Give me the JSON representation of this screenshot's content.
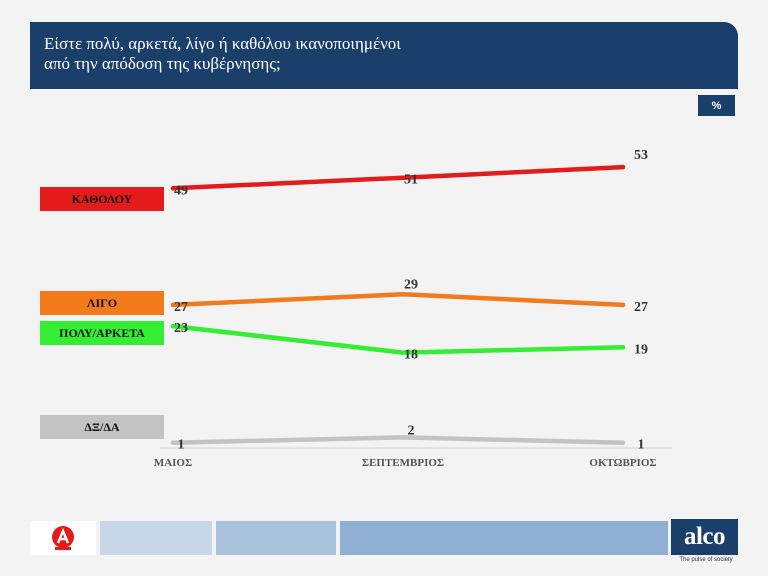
{
  "title": {
    "line1": "Είστε πολύ, αρκετά, λίγο ή καθόλου ικανοποιημένοι",
    "line2": "από την απόδοση της κυβέρνησης;"
  },
  "unit_badge": "%",
  "brand": {
    "name": "alco",
    "tagline": "The pulse of society"
  },
  "colors": {
    "header": "#1a3f6b",
    "katholou": "#e31b1b",
    "ligo": "#f07a1c",
    "poly_arketa": "#33ee33",
    "dk_na": "#c3c3c3"
  },
  "chart_data": {
    "type": "line",
    "categories": [
      "ΜΑΙΟΣ",
      "ΣΕΠΤΕΜΒΡΙΟΣ",
      "ΟΚΤΩΒΡΙΟΣ"
    ],
    "series": [
      {
        "name": "ΚΑΘΟΛΟΥ",
        "values": [
          49,
          51,
          53
        ],
        "color": "#e31b1b"
      },
      {
        "name": "ΛΙΓΟ",
        "values": [
          27,
          29,
          27
        ],
        "color": "#f07a1c"
      },
      {
        "name": "ΠΟΛΥ/ΑΡΚΕΤΑ",
        "values": [
          23,
          18,
          19
        ],
        "color": "#33ee33"
      },
      {
        "name": "ΔΞ/ΔΑ",
        "values": [
          1,
          2,
          1
        ],
        "color": "#c3c3c3"
      }
    ],
    "ylim": [
      0,
      60
    ],
    "unit": "%",
    "grid": false,
    "legend_placement": "left"
  }
}
